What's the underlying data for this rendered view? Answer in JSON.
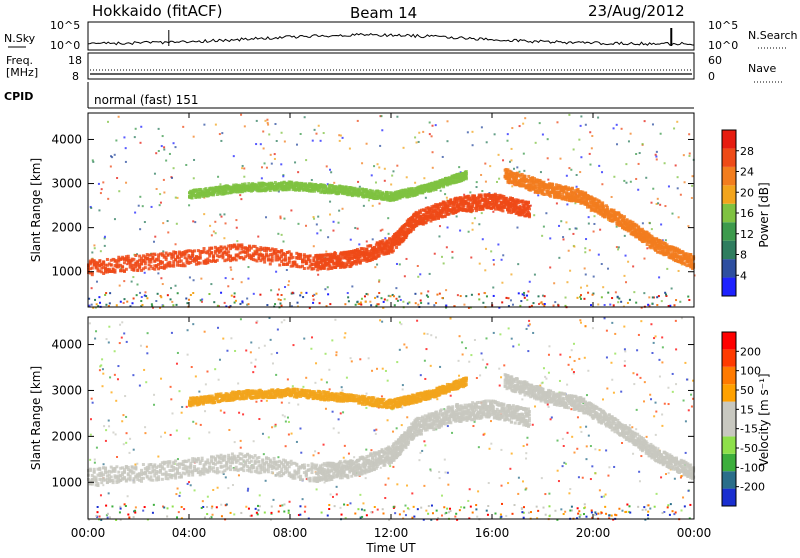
{
  "header": {
    "radar": "Hokkaido (fitACF)",
    "beam": "Beam 14",
    "date": "23/Aug/2012"
  },
  "nsky_panel": {
    "left_label": "N.Sky",
    "right_label": "N.Search",
    "left_ticks": [
      "10^5",
      "10^0"
    ],
    "right_ticks": [
      "10^5",
      "10^0"
    ]
  },
  "freq_panel": {
    "left_label_1": "Freq.",
    "left_label_2": "[MHz]",
    "right_label": "Nave",
    "left_ticks": [
      "18",
      "8"
    ],
    "right_ticks": [
      "60",
      "0"
    ]
  },
  "cpid_panel": {
    "label": "CPID",
    "mode": "normal (fast) 151"
  },
  "colors": {
    "power_scale": [
      "#1e22ff",
      "#2e4fa0",
      "#2f7d5f",
      "#3c9a4c",
      "#7fc241",
      "#f2a41c",
      "#f27d1e",
      "#ee4a17",
      "#e61c10"
    ],
    "velocity_scale": [
      "#ff0000",
      "#ff3a00",
      "#ff7a00",
      "#ffa100",
      "#c8c8c0",
      "#c8c8c0",
      "#8ee04a",
      "#3cae3c",
      "#2a6e8a",
      "#1a2fd0"
    ]
  },
  "chart_data": [
    {
      "type": "heatmap",
      "name": "power",
      "ylabel": "Slant Range [km]",
      "yticks": [
        1000,
        2000,
        3000,
        4000
      ],
      "ylim": [
        200,
        4600
      ],
      "xlim": [
        0,
        24
      ],
      "colorbar": {
        "label": "Power [dB]",
        "ticks": [
          "4",
          "8",
          "12",
          "16",
          "20",
          "24",
          "28"
        ]
      },
      "bands": [
        {
          "x": [
            0,
            3,
            6,
            9,
            10.5,
            12,
            13,
            14.5,
            16,
            17.5
          ],
          "y": [
            1100,
            1250,
            1450,
            1200,
            1300,
            1600,
            2200,
            2500,
            2600,
            2400
          ],
          "width": 350,
          "color": "#ee4a17"
        },
        {
          "x": [
            16.5,
            18,
            19.5,
            21,
            22.5,
            24
          ],
          "y": [
            3200,
            2900,
            2700,
            2200,
            1600,
            1200
          ],
          "width": 300,
          "color": "#f27d1e"
        },
        {
          "x": [
            4,
            6,
            8,
            10,
            12,
            13.5,
            15
          ],
          "y": [
            2750,
            2900,
            2950,
            2850,
            2700,
            2900,
            3200
          ],
          "width": 180,
          "color": "#7fc241"
        }
      ]
    },
    {
      "type": "heatmap",
      "name": "velocity",
      "ylabel": "Slant Range [km]",
      "yticks": [
        1000,
        2000,
        3000,
        4000
      ],
      "ylim": [
        200,
        4600
      ],
      "xlim": [
        0,
        24
      ],
      "colorbar": {
        "label": "Velocity [m s⁻¹]",
        "ticks": [
          "200",
          "100",
          "50",
          "15",
          "-15",
          "-50",
          "-100",
          "-200"
        ]
      },
      "bands": [
        {
          "x": [
            0,
            3,
            6,
            9,
            10.5,
            12,
            13,
            14.5,
            16,
            17.5
          ],
          "y": [
            1100,
            1250,
            1450,
            1200,
            1300,
            1600,
            2200,
            2500,
            2600,
            2400
          ],
          "width": 380,
          "color": "#c8c8c0"
        },
        {
          "x": [
            16.5,
            18,
            19.5,
            21,
            22.5,
            24
          ],
          "y": [
            3200,
            2900,
            2700,
            2200,
            1600,
            1200
          ],
          "width": 300,
          "color": "#c8c8c0"
        },
        {
          "x": [
            4,
            6,
            8,
            10,
            12,
            13.5,
            15
          ],
          "y": [
            2750,
            2900,
            2950,
            2850,
            2700,
            2900,
            3200
          ],
          "width": 180,
          "color": "#f2a41c"
        }
      ]
    }
  ],
  "x_axis": {
    "label": "Time UT",
    "ticks": [
      "00:00",
      "04:00",
      "08:00",
      "12:00",
      "16:00",
      "20:00",
      "00:00"
    ]
  }
}
